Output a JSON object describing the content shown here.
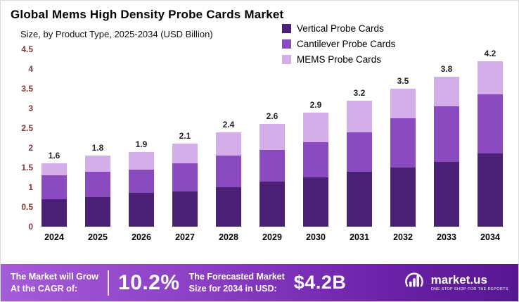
{
  "chart_data": {
    "type": "bar",
    "stacked": true,
    "title": "Global Mems High Density Probe Cards Market",
    "subtitle": "Size, by Product Type, 2025-2034 (USD Billion)",
    "categories": [
      "2024",
      "2025",
      "2026",
      "2027",
      "2028",
      "2029",
      "2030",
      "2031",
      "2032",
      "2033",
      "2034"
    ],
    "series": [
      {
        "name": "Vertical Probe Cards",
        "color": "#4b2177",
        "values": [
          0.7,
          0.75,
          0.85,
          0.9,
          1.0,
          1.15,
          1.25,
          1.4,
          1.5,
          1.65,
          1.85
        ]
      },
      {
        "name": "Cantilever Probe Cards",
        "color": "#8a4bc0",
        "values": [
          0.6,
          0.65,
          0.6,
          0.7,
          0.8,
          0.8,
          0.9,
          1.0,
          1.25,
          1.4,
          1.5
        ]
      },
      {
        "name": "MEMS Probe Cards",
        "color": "#d4aee9",
        "values": [
          0.3,
          0.4,
          0.45,
          0.5,
          0.6,
          0.65,
          0.75,
          0.8,
          0.75,
          0.75,
          0.85
        ]
      }
    ],
    "totals": [
      1.6,
      1.8,
      1.9,
      2.1,
      2.4,
      2.6,
      2.9,
      3.2,
      3.5,
      3.8,
      4.2
    ],
    "ylim": [
      0,
      4.5
    ],
    "yticks": [
      0,
      0.5,
      1,
      1.5,
      2,
      2.5,
      3,
      3.5,
      4,
      4.5
    ],
    "xlabel": "",
    "ylabel": "",
    "legend_position": "top-right",
    "grid": false
  },
  "banner": {
    "cagr_label_line1": "The Market will Grow",
    "cagr_label_line2": "At the CAGR of:",
    "cagr_value": "10.2%",
    "forecast_label_line1": "The Forecasted Market",
    "forecast_label_line2": "Size for 2034 in USD:",
    "forecast_value": "$4.2B",
    "brand_name": "market.us",
    "brand_tagline": "ONE STOP SHOP FOR THE REPORTS"
  }
}
